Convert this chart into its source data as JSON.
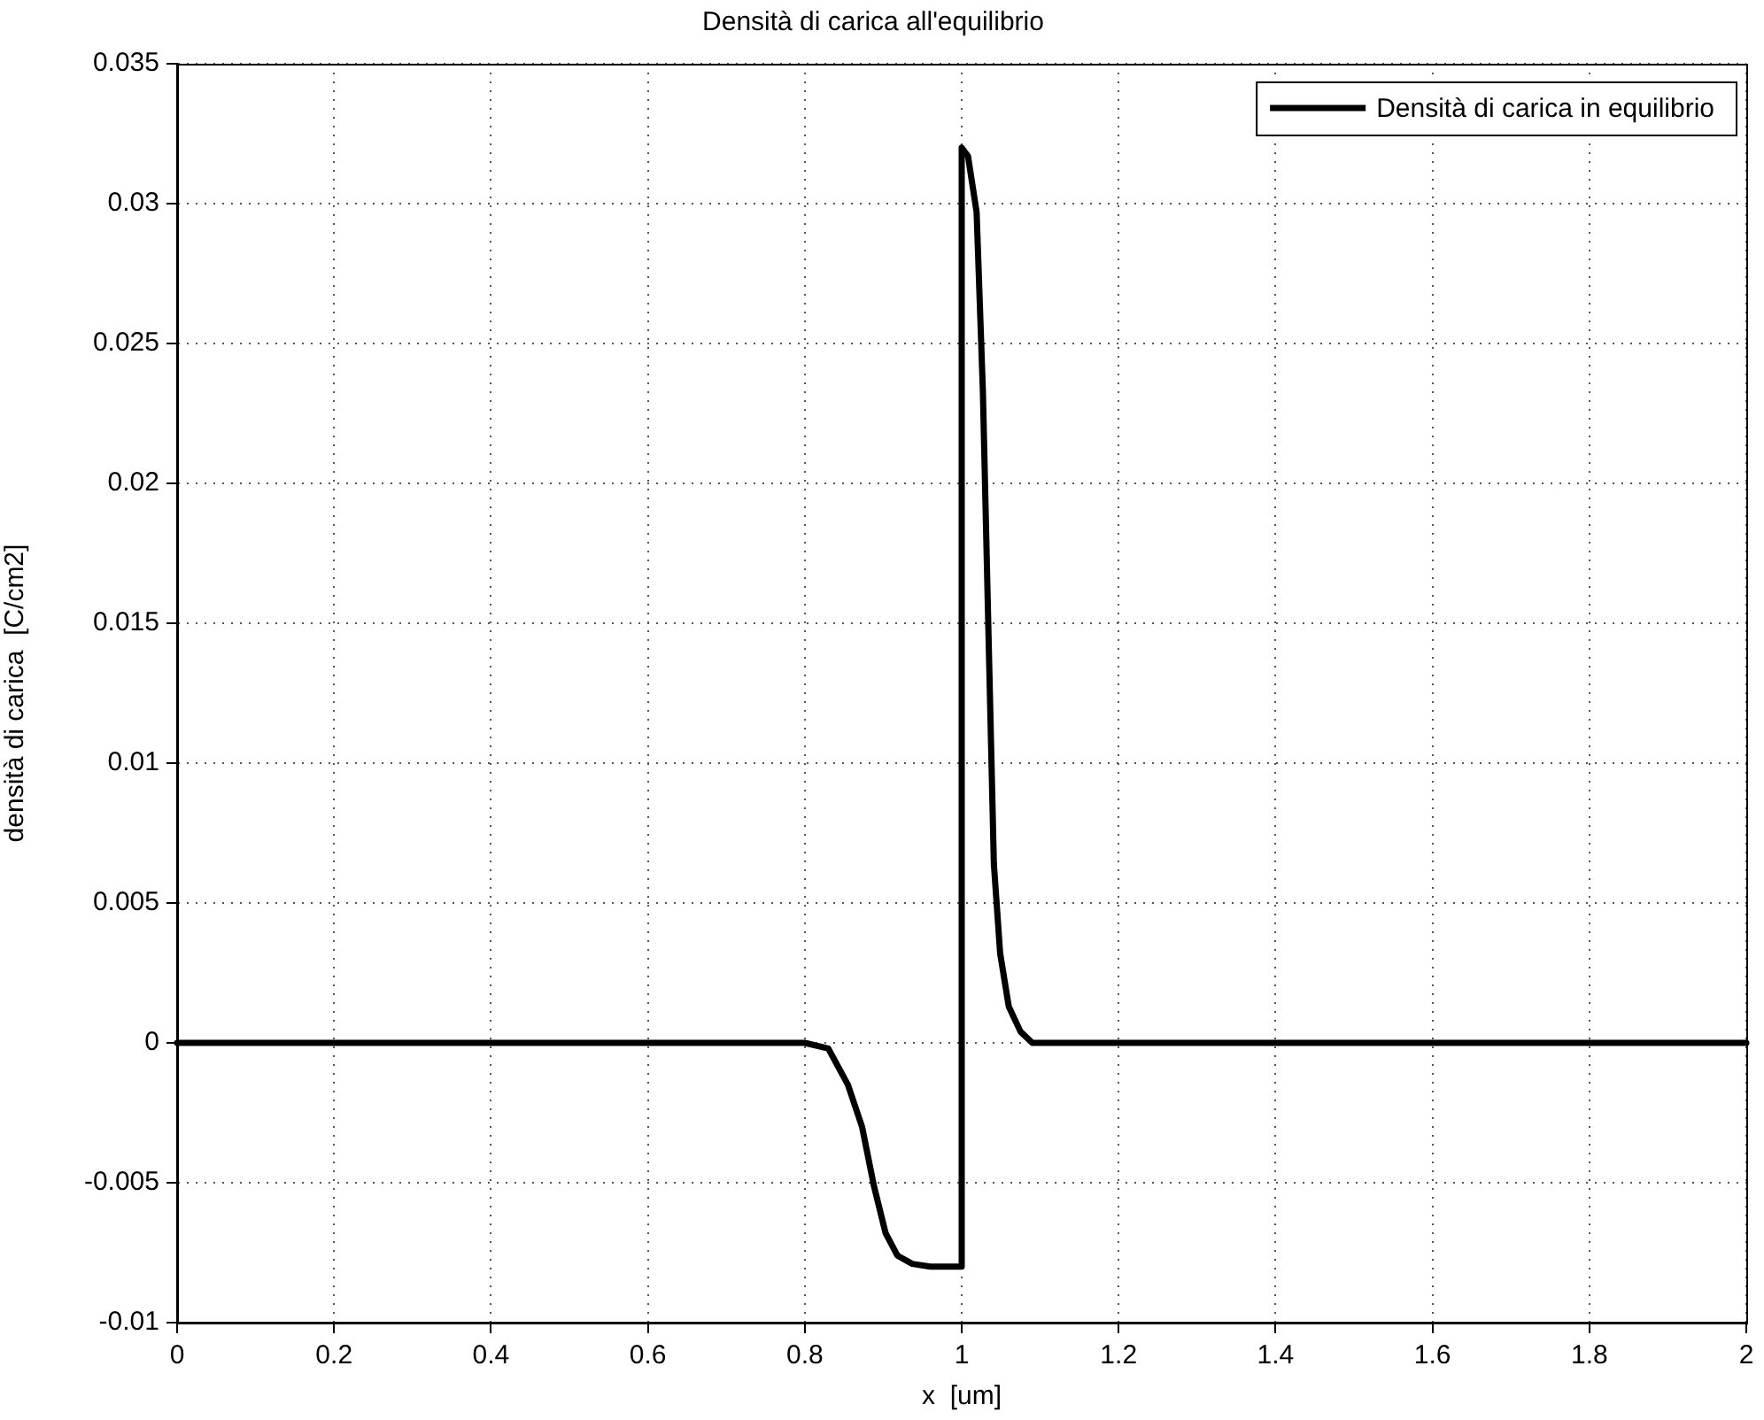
{
  "chart_data": {
    "type": "line",
    "title": "Densità di carica all'equilibrio",
    "xlabel": "x  [um]",
    "ylabel": "densità di carica  [C/cm2]",
    "x": [
      0,
      0.4,
      0.75,
      0.8,
      0.83,
      0.855,
      0.873,
      0.888,
      0.903,
      0.918,
      0.937,
      0.96,
      1,
      1,
      1.008,
      1.019,
      1.027,
      1.034,
      1.041,
      1.049,
      1.06,
      1.075,
      1.09,
      1.5,
      2
    ],
    "series": [
      {
        "name": "Densità di carica in equilibrio",
        "color": "#000000",
        "values": [
          0,
          0,
          0,
          0,
          -0.0002,
          -0.0015,
          -0.003,
          -0.0051,
          -0.0068,
          -0.0076,
          -0.0079,
          -0.008,
          -0.008,
          0.032,
          0.0317,
          0.0297,
          0.0233,
          0.0148,
          0.0064,
          0.0032,
          0.0013,
          0.0004,
          0,
          0,
          0
        ]
      }
    ],
    "xlim": [
      0,
      2
    ],
    "xticks": [
      0,
      0.2,
      0.4,
      0.6,
      0.8,
      1,
      1.2,
      1.4,
      1.6,
      1.8,
      2
    ],
    "ylim": [
      -0.01,
      0.035
    ],
    "yticks": [
      -0.01,
      -0.005,
      0,
      0.005,
      0.01,
      0.015,
      0.02,
      0.025,
      0.03,
      0.035
    ],
    "grid": true,
    "legend": "top right",
    "marker": "none",
    "line_style": "solid"
  }
}
